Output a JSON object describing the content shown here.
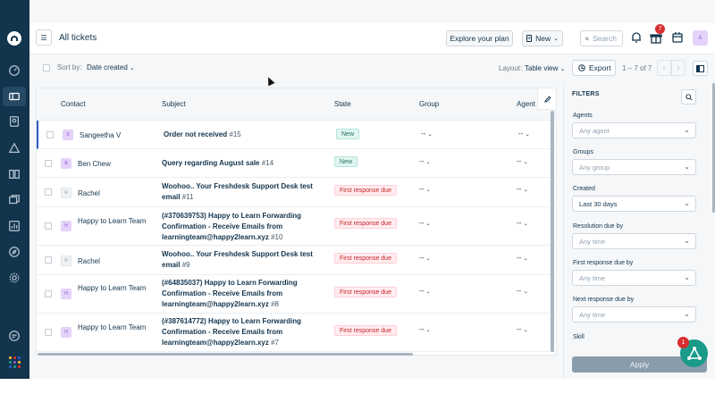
{
  "header": {
    "title": "All tickets",
    "explore_label": "Explore your plan",
    "new_label": "New",
    "search_placeholder": "Search",
    "notification_badge": "7",
    "avatar_initial": "A"
  },
  "toolbar": {
    "sort_label": "Sort by:",
    "sort_value": "Date created",
    "layout_label": "Layout:",
    "layout_value": "Table view",
    "export_label": "Export",
    "pagination": "1 – 7 of 7"
  },
  "table": {
    "columns": [
      "Contact",
      "Subject",
      "State",
      "Group",
      "Agent"
    ],
    "rows": [
      {
        "initial": "S",
        "contact": "Sangeetha V",
        "subject": "Order not received",
        "number": "#15",
        "state": "New",
        "group": "-- ",
        "agent": "-- "
      },
      {
        "initial": "B",
        "contact": "Ben Chew",
        "subject": "Query regarding August sale",
        "number": "#14",
        "state": "New",
        "group": "-- ",
        "agent": "-- "
      },
      {
        "initial": "R",
        "contact": "Rachel",
        "subject": "Woohoo.. Your Freshdesk Support Desk test email",
        "number": "#11",
        "state": "First response due",
        "group": "-- ",
        "agent": "-- "
      },
      {
        "initial": "H",
        "contact": "Happy to Learn Team",
        "subject": "(#370639753) Happy to Learn Forwarding Confirmation - Receive Emails from learningteam@happy2learn.xyz",
        "number": "#10",
        "state": "First response due",
        "group": "-- ",
        "agent": "-- "
      },
      {
        "initial": "R",
        "contact": "Rachel",
        "subject": "Woohoo.. Your Freshdesk Support Desk test email",
        "number": "#9",
        "state": "First response due",
        "group": "-- ",
        "agent": "-- "
      },
      {
        "initial": "H",
        "contact": "Happy to Learn Team",
        "subject": "(#64835037) Happy to Learn Forwarding Confirmation - Receive Emails from learningteam@happy2learn.xyz",
        "number": "#8",
        "state": "First response due",
        "group": "-- ",
        "agent": "-- "
      },
      {
        "initial": "H",
        "contact": "Happy to Learn Team",
        "subject": "(#387614772) Happy to Learn Forwarding Confirmation - Receive Emails from learningteam@happy2learn.xyz",
        "number": "#7",
        "state": "First response due",
        "group": "-- ",
        "agent": "-- "
      }
    ]
  },
  "filters": {
    "title": "FILTERS",
    "fields": [
      {
        "label": "Agents",
        "value": "Any agent",
        "filled": false
      },
      {
        "label": "Groups",
        "value": "Any group",
        "filled": false
      },
      {
        "label": "Created",
        "value": "Last 30 days",
        "filled": true
      },
      {
        "label": "Resolution due by",
        "value": "Any time",
        "filled": false
      },
      {
        "label": "First response due by",
        "value": "Any time",
        "filled": false
      },
      {
        "label": "Next response due by",
        "value": "Any time",
        "filled": false
      }
    ],
    "skill_label": "Skill",
    "apply_label": "Apply"
  },
  "fab_badge": "1",
  "colors": {
    "sidebar": "#12344d",
    "state_new": "#24715f",
    "state_due": "#c82124",
    "fab": "#1a9a88"
  }
}
